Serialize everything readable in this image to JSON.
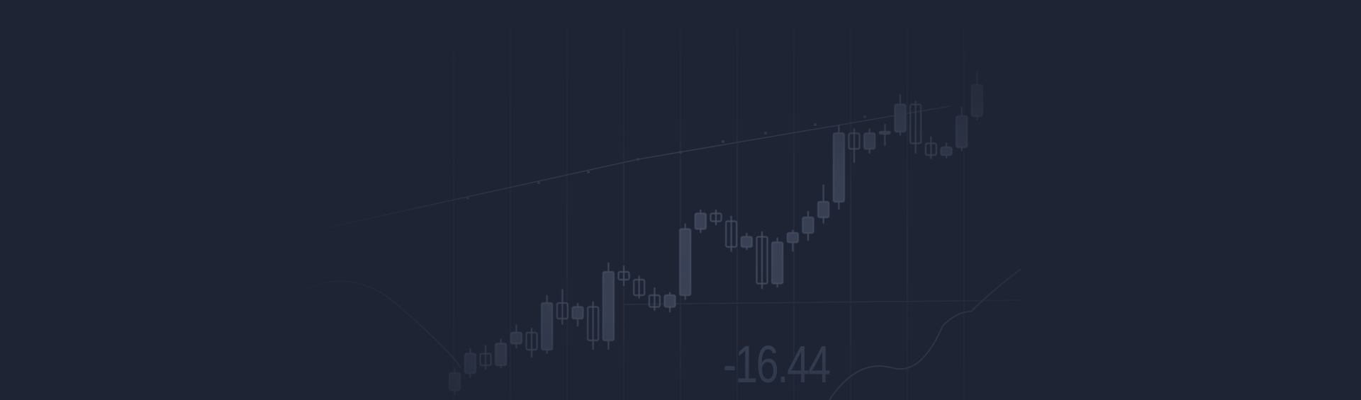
{
  "banner": {
    "background_color": "#1e2433",
    "decoration": "faded-candlestick-chart",
    "readout_value": "-16.44"
  },
  "chart_data": {
    "type": "candlestick",
    "title": "",
    "xlabel": "",
    "ylabel": "",
    "grid": true,
    "colors": {
      "candle_fill": "#3a4356",
      "candle_outline": "#454e62",
      "grid": "#2a3142",
      "trend_line": "#353d50"
    },
    "candles": [
      {
        "open": 8,
        "close": 30,
        "high": 36,
        "low": 2
      },
      {
        "open": 30,
        "close": 55,
        "high": 62,
        "low": 24
      },
      {
        "open": 55,
        "close": 40,
        "high": 66,
        "low": 34
      },
      {
        "open": 40,
        "close": 68,
        "high": 74,
        "low": 36
      },
      {
        "open": 68,
        "close": 82,
        "high": 92,
        "low": 62
      },
      {
        "open": 82,
        "close": 60,
        "high": 88,
        "low": 50
      },
      {
        "open": 60,
        "close": 120,
        "high": 130,
        "low": 55
      },
      {
        "open": 120,
        "close": 100,
        "high": 138,
        "low": 92
      },
      {
        "open": 100,
        "close": 115,
        "high": 120,
        "low": 90
      },
      {
        "open": 115,
        "close": 72,
        "high": 122,
        "low": 60
      },
      {
        "open": 72,
        "close": 160,
        "high": 172,
        "low": 60
      },
      {
        "open": 160,
        "close": 150,
        "high": 168,
        "low": 142
      },
      {
        "open": 150,
        "close": 130,
        "high": 155,
        "low": 126
      },
      {
        "open": 130,
        "close": 115,
        "high": 140,
        "low": 110
      },
      {
        "open": 115,
        "close": 130,
        "high": 134,
        "low": 108
      },
      {
        "open": 130,
        "close": 215,
        "high": 222,
        "low": 124
      },
      {
        "open": 215,
        "close": 235,
        "high": 240,
        "low": 210
      },
      {
        "open": 235,
        "close": 225,
        "high": 240,
        "low": 220
      },
      {
        "open": 225,
        "close": 192,
        "high": 232,
        "low": 186
      },
      {
        "open": 192,
        "close": 205,
        "high": 210,
        "low": 188
      },
      {
        "open": 205,
        "close": 145,
        "high": 212,
        "low": 138
      },
      {
        "open": 145,
        "close": 198,
        "high": 204,
        "low": 140
      },
      {
        "open": 198,
        "close": 210,
        "high": 214,
        "low": 186
      },
      {
        "open": 210,
        "close": 230,
        "high": 238,
        "low": 200
      },
      {
        "open": 230,
        "close": 250,
        "high": 272,
        "low": 222
      },
      {
        "open": 250,
        "close": 338,
        "high": 348,
        "low": 240
      },
      {
        "open": 338,
        "close": 318,
        "high": 344,
        "low": 300
      },
      {
        "open": 318,
        "close": 338,
        "high": 344,
        "low": 312
      },
      {
        "open": 338,
        "close": 340,
        "high": 350,
        "low": 322
      },
      {
        "open": 340,
        "close": 375,
        "high": 388,
        "low": 335
      },
      {
        "open": 375,
        "close": 325,
        "high": 380,
        "low": 312
      },
      {
        "open": 325,
        "close": 310,
        "high": 334,
        "low": 305
      },
      {
        "open": 310,
        "close": 320,
        "high": 326,
        "low": 306
      },
      {
        "open": 320,
        "close": 360,
        "high": 372,
        "low": 315
      },
      {
        "open": 360,
        "close": 400,
        "high": 418,
        "low": 355
      }
    ]
  }
}
